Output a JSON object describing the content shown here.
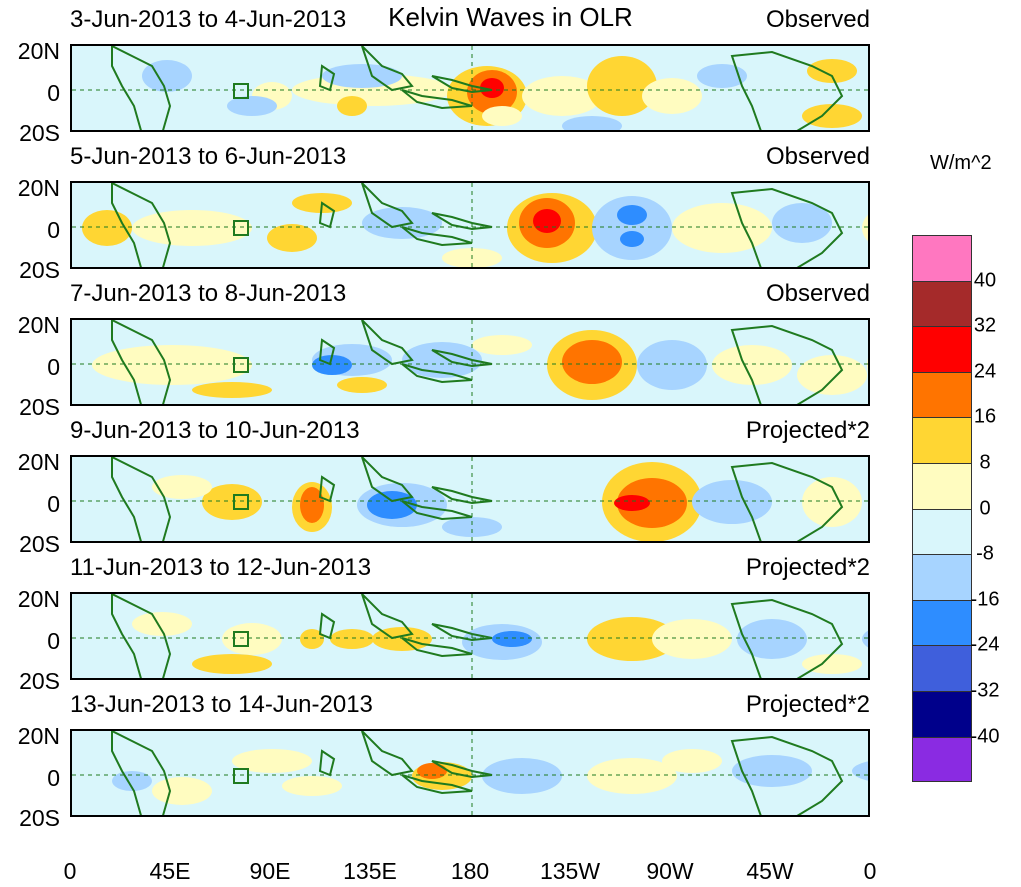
{
  "title": "Kelvin Waves in OLR",
  "units_label": "W/m^2",
  "lat_labels": [
    "20N",
    "0",
    "20S"
  ],
  "lon_labels": [
    "0",
    "45E",
    "90E",
    "135E",
    "180",
    "135W",
    "90W",
    "45W",
    "0"
  ],
  "panels": [
    {
      "date_range": "3-Jun-2013 to 4-Jun-2013",
      "type": "Observed"
    },
    {
      "date_range": "5-Jun-2013 to 6-Jun-2013",
      "type": "Observed"
    },
    {
      "date_range": "7-Jun-2013 to 8-Jun-2013",
      "type": "Observed"
    },
    {
      "date_range": "9-Jun-2013 to 10-Jun-2013",
      "type": "Projected*2"
    },
    {
      "date_range": "11-Jun-2013 to 12-Jun-2013",
      "type": "Projected*2"
    },
    {
      "date_range": "13-Jun-2013 to 14-Jun-2013",
      "type": "Projected*2"
    }
  ],
  "colorbar": {
    "colors": [
      "#ff77c0",
      "#a52a2a",
      "#ff0000",
      "#ff7400",
      "#ffd633",
      "#fffcc0",
      "#d9f6fb",
      "#a7d4ff",
      "#2e8dff",
      "#3f5fdc",
      "#00008b",
      "#8a2be2"
    ],
    "labels": [
      "40",
      "32",
      "24",
      "16",
      "8",
      "0",
      "-8",
      "-16",
      "-24",
      "-32",
      "-40"
    ]
  }
}
